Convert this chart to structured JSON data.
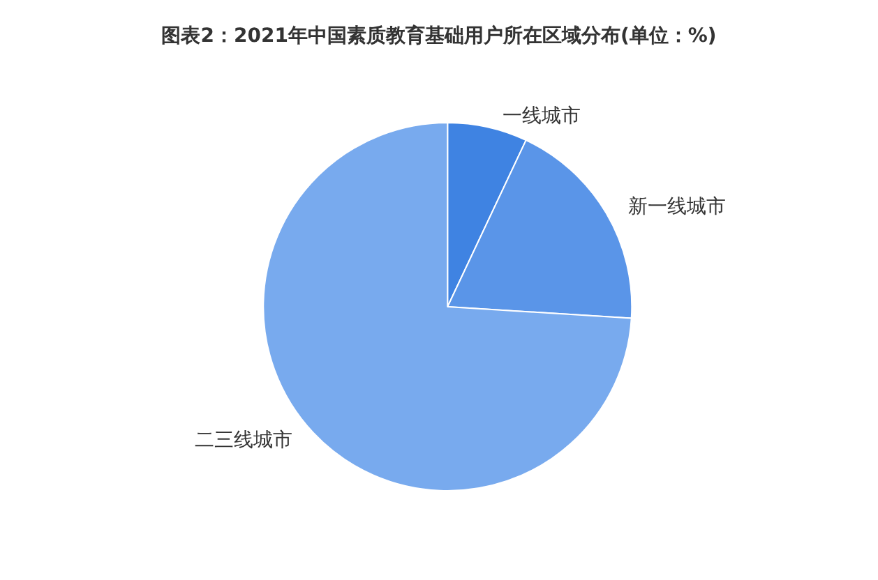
{
  "chart_data": {
    "type": "pie",
    "title": "图表2：2021年中国素质教育基础用户所在区域分布(单位：%)",
    "categories": [
      "一线城市",
      "新一线城市",
      "二三线城市"
    ],
    "values": [
      7,
      19,
      74
    ],
    "colors": [
      "#3f83e2",
      "#5a95e8",
      "#78aaee"
    ],
    "legend": false
  }
}
